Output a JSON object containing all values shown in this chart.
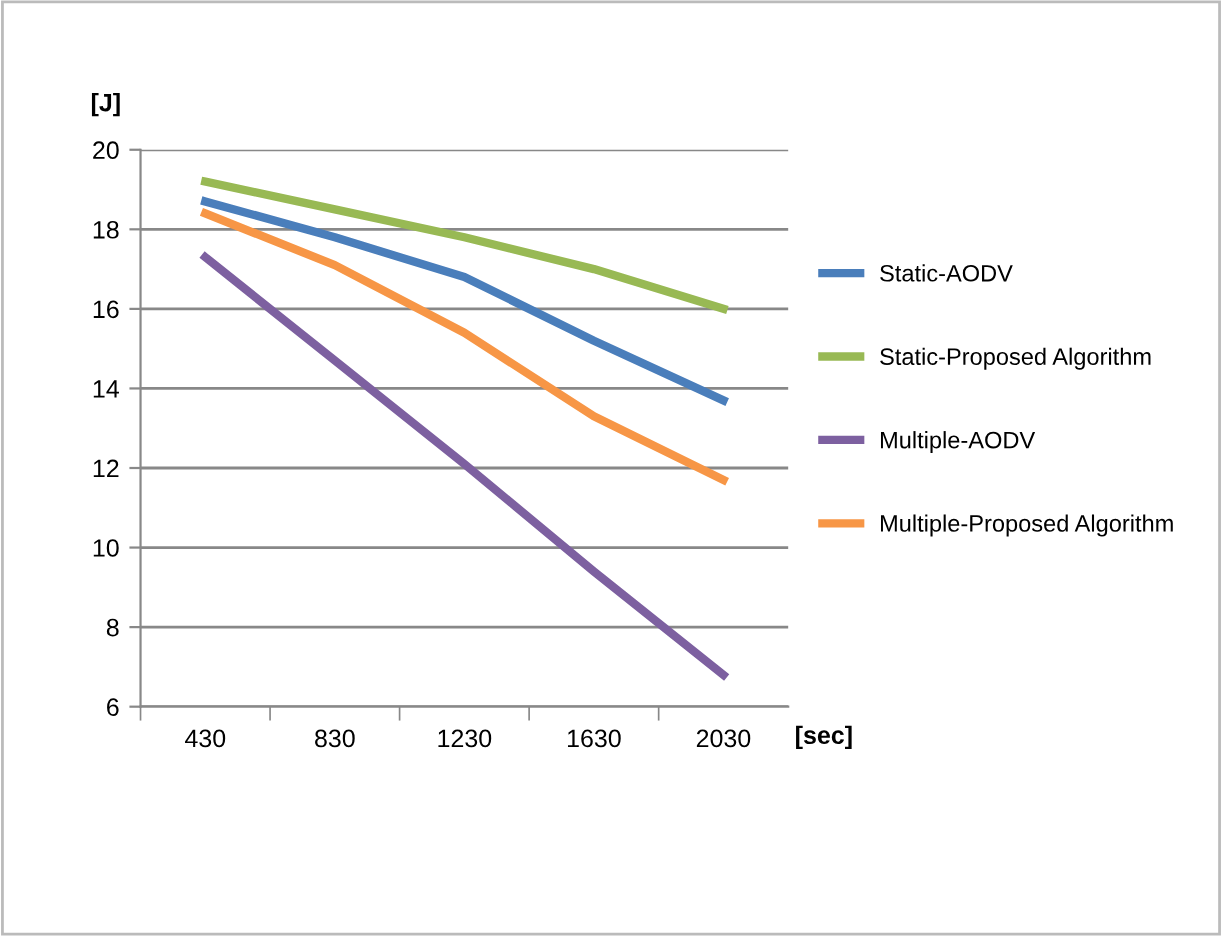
{
  "chart_data": {
    "type": "line",
    "ylabel": "[J]",
    "xlabel": "[sec]",
    "categories": [
      "430",
      "830",
      "1230",
      "1630",
      "2030"
    ],
    "series": [
      {
        "name": "Static-AODV",
        "color": "#4a7ebb",
        "values": [
          18.7,
          17.8,
          16.8,
          15.2,
          13.7
        ]
      },
      {
        "name": "Static-Proposed Algorithm",
        "color": "#98b954",
        "values": [
          19.2,
          18.5,
          17.8,
          17.0,
          16.0
        ]
      },
      {
        "name": "Multiple-AODV",
        "color": "#7d60a0",
        "values": [
          17.3,
          14.7,
          12.1,
          9.4,
          6.8
        ]
      },
      {
        "name": "Multiple-Proposed Algorithm",
        "color": "#f79646",
        "values": [
          18.4,
          17.1,
          15.4,
          13.3,
          11.7
        ]
      }
    ],
    "ylim": [
      6,
      20
    ],
    "yticks": [
      6,
      8,
      10,
      12,
      14,
      16,
      18,
      20
    ],
    "grid": "y",
    "legend": "right",
    "marker": "none",
    "line_style": "solid"
  }
}
